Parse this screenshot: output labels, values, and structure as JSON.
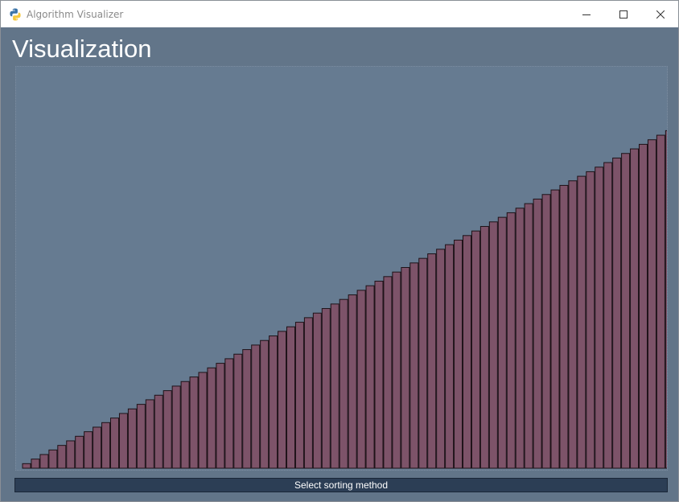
{
  "window": {
    "title": "Algorithm Visualizer",
    "icon": "python-logo-icon",
    "controls": [
      "minimize-icon",
      "maximize-icon",
      "close-icon"
    ]
  },
  "main": {
    "heading": "Visualization",
    "action_button_label": "Select sorting method"
  },
  "colors": {
    "background": "#627589",
    "bar_fill": "#7d5369",
    "bar_stroke": "#1e1218",
    "button": "#2c3e55"
  },
  "chart_data": {
    "type": "bar",
    "title": "",
    "xlabel": "",
    "ylabel": "",
    "grid": false,
    "values": [
      1,
      2,
      3,
      4,
      5,
      6,
      7,
      8,
      9,
      10,
      11,
      12,
      13,
      14,
      15,
      16,
      17,
      18,
      19,
      20,
      21,
      22,
      23,
      24,
      25,
      26,
      27,
      28,
      29,
      30,
      31,
      32,
      33,
      34,
      35,
      36,
      37,
      38,
      39,
      40,
      41,
      42,
      43,
      44,
      45,
      46,
      47,
      48,
      49,
      50,
      51,
      52,
      53,
      54,
      55,
      56,
      57,
      58,
      59,
      60,
      61,
      62,
      63,
      64,
      65,
      66,
      67,
      68,
      69,
      70,
      71,
      72,
      73,
      74,
      75,
      76,
      77
    ],
    "ylim": [
      0,
      88
    ]
  }
}
